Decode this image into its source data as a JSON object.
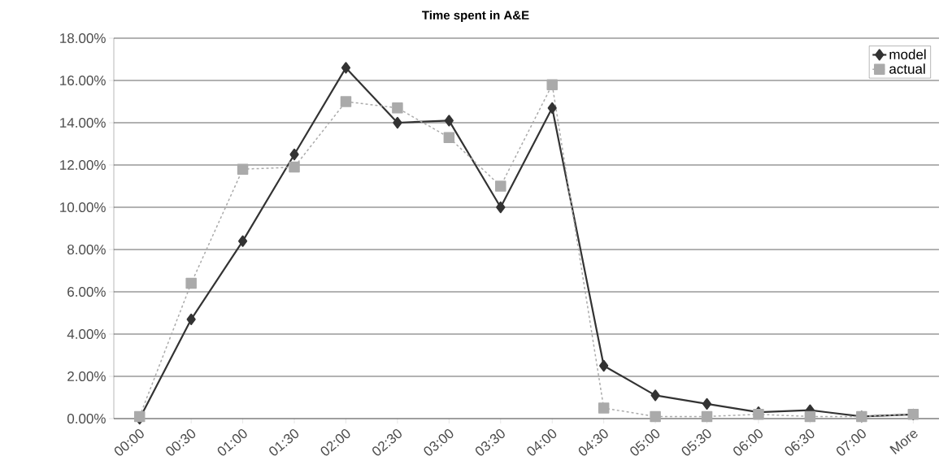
{
  "chart_data": {
    "type": "line",
    "title": "Time spent in A&E",
    "categories": [
      "00:00",
      "00:30",
      "01:00",
      "01:30",
      "02:00",
      "02:30",
      "03:00",
      "03:30",
      "04:00",
      "04:30",
      "05:00",
      "05:30",
      "06:00",
      "06:30",
      "07:00",
      "More"
    ],
    "series": [
      {
        "name": "model",
        "color": "#333333",
        "marker": "diamond",
        "line_style": "solid",
        "values": [
          0,
          4.7,
          8.4,
          12.5,
          16.6,
          14.0,
          14.1,
          10.0,
          14.7,
          2.5,
          1.1,
          0.7,
          0.3,
          0.4,
          0.1,
          0.2
        ]
      },
      {
        "name": "actual",
        "color": "#aaaaaa",
        "marker": "square",
        "line_style": "dashed",
        "values": [
          0.1,
          6.4,
          11.8,
          11.9,
          15.0,
          14.7,
          13.3,
          11.0,
          15.8,
          0.5,
          0.1,
          0.1,
          0.2,
          0.1,
          0.1,
          0.2
        ]
      }
    ],
    "ylim": [
      0,
      18
    ],
    "yticks": [
      {
        "value": 0,
        "label": "0.00%"
      },
      {
        "value": 2,
        "label": "2.00%"
      },
      {
        "value": 4,
        "label": "4.00%"
      },
      {
        "value": 6,
        "label": "6.00%"
      },
      {
        "value": 8,
        "label": "8.00%"
      },
      {
        "value": 10,
        "label": "10.00%"
      },
      {
        "value": 12,
        "label": "12.00%"
      },
      {
        "value": 14,
        "label": "14.00%"
      },
      {
        "value": 16,
        "label": "16.00%"
      },
      {
        "value": 18,
        "label": "18.00%"
      }
    ],
    "grid": "y",
    "legend": "top right"
  }
}
